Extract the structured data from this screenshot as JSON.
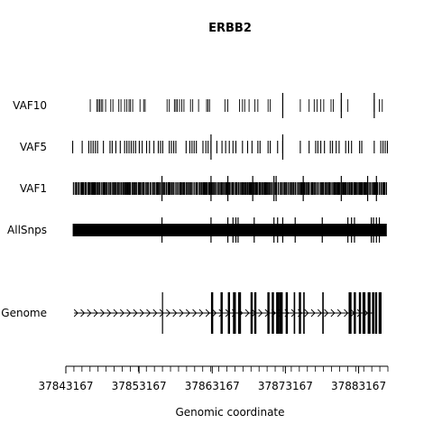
{
  "chart_data": {
    "type": "genome-track",
    "title": "ERBB2",
    "xlabel": "Genomic coordinate",
    "ylabel": "",
    "xlim": [
      37843167,
      37887167
    ],
    "x_ticks": [
      37843167,
      37853167,
      37863167,
      37873167,
      37883167
    ],
    "minor_tick_step": 1000,
    "tracks": [
      "VAF10",
      "VAF5",
      "VAF1",
      "AllSnps",
      "Genome"
    ],
    "genome": {
      "label": "Genome",
      "strand": "+",
      "span": [
        37844300,
        37885300
      ],
      "exons": [
        [
          37856300,
          37856400
        ],
        [
          37863000,
          37863300
        ],
        [
          37864300,
          37864600
        ],
        [
          37865300,
          37865600
        ],
        [
          37866000,
          37866400
        ],
        [
          37866700,
          37867100
        ],
        [
          37868400,
          37868700
        ],
        [
          37868900,
          37869200
        ],
        [
          37870700,
          37871000
        ],
        [
          37871300,
          37871600
        ],
        [
          37871900,
          37872300
        ],
        [
          37872300,
          37872800
        ],
        [
          37873200,
          37873500
        ],
        [
          37874300,
          37874500
        ],
        [
          37875000,
          37875300
        ],
        [
          37875600,
          37875800
        ],
        [
          37878200,
          37878400
        ],
        [
          37881800,
          37882200
        ],
        [
          37882500,
          37882800
        ],
        [
          37883200,
          37883500
        ],
        [
          37883700,
          37884100
        ],
        [
          37884400,
          37884800
        ],
        [
          37885000,
          37885300
        ],
        [
          37885400,
          37885700
        ],
        [
          37885900,
          37886300
        ]
      ]
    },
    "series": [
      {
        "name": "VAF10",
        "weight": "thin",
        "major": [
          37872800,
          37880800,
          37885300
        ],
        "positions": [
          37846500,
          37847400,
          37847600,
          37847800,
          37848000,
          37848200,
          37848600,
          37849300,
          37849600,
          37850400,
          37850700,
          37851200,
          37851500,
          37851800,
          37852000,
          37852300,
          37853300,
          37853800,
          37854000,
          37857000,
          37857300,
          37858000,
          37858200,
          37858400,
          37858700,
          37859000,
          37859300,
          37860200,
          37860500,
          37861300,
          37862400,
          37862600,
          37862800,
          37864900,
          37865300,
          37866900,
          37867300,
          37867600,
          37868200,
          37869000,
          37869400,
          37870800,
          37871100,
          37872800,
          37875200,
          37876400,
          37877100,
          37877500,
          37878000,
          37878400,
          37879400,
          37879700,
          37880800,
          37881700,
          37885300,
          37886000,
          37886400
        ]
      },
      {
        "name": "VAF5",
        "weight": "medium",
        "major": [
          37863000,
          37872800
        ],
        "positions": [
          37844100,
          37845400,
          37846300,
          37846600,
          37846900,
          37847200,
          37847500,
          37848300,
          37849200,
          37849500,
          37850000,
          37850600,
          37851200,
          37851500,
          37851800,
          37852100,
          37852400,
          37852700,
          37853200,
          37853600,
          37854200,
          37854600,
          37855200,
          37855800,
          37856100,
          37856400,
          37857300,
          37857600,
          37857900,
          37858200,
          37859600,
          37860100,
          37860400,
          37860700,
          37861000,
          37861900,
          37862300,
          37862600,
          37863000,
          37863800,
          37864500,
          37865000,
          37865500,
          37866000,
          37866400,
          37867300,
          37868000,
          37868600,
          37869400,
          37869700,
          37870800,
          37871100,
          37872100,
          37872800,
          37875200,
          37876400,
          37877300,
          37877600,
          37878000,
          37878500,
          37879300,
          37879600,
          37880100,
          37880500,
          37881400,
          37881800,
          37882200,
          37883300,
          37883600,
          37885300,
          37886200,
          37886500,
          37886800,
          37887100
        ]
      },
      {
        "name": "VAF1",
        "weight": "medium",
        "major": [
          37856300,
          37863000,
          37865300,
          37868700,
          37871600,
          37871900,
          37875600,
          37880800,
          37884400,
          37885600
        ],
        "positions": []
      },
      {
        "name": "AllSnps",
        "weight": "thick",
        "major": [
          37856300,
          37863000,
          37865300,
          37866000,
          37866400,
          37866700,
          37868900,
          37871600,
          37872100,
          37872800,
          37874500,
          37878200,
          37881700,
          37882200,
          37882600,
          37884900,
          37885200,
          37885600,
          37886000
        ],
        "positions": []
      }
    ]
  }
}
